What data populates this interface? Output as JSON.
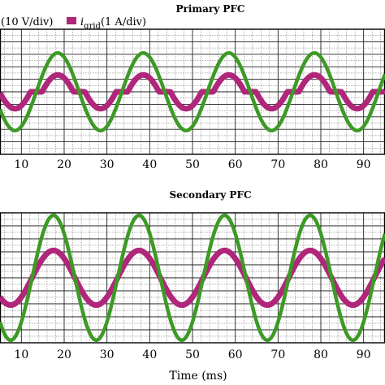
{
  "chart_data": [
    {
      "type": "line",
      "title": "Primary PFC",
      "xlabel": "",
      "ylabel": "",
      "x_range_ms": [
        5,
        95
      ],
      "x_ticks": [
        10,
        20,
        30,
        40,
        50,
        60,
        70,
        80,
        90
      ],
      "y_divisions": 10,
      "grid": true,
      "legend": {
        "placement": "top",
        "entries": [
          {
            "series": "vgrid",
            "label_visible": "(10 V/div)"
          },
          {
            "series": "igrid",
            "label_main": "i",
            "label_sub": "grid",
            "label_rest": "(1 A/div)"
          }
        ]
      },
      "series": [
        {
          "key": "vgrid",
          "color": "#3c9a25",
          "frequency_hz": 50,
          "peak_ms": 18.5,
          "amplitude_div": 3.1,
          "offset_div": 0
        },
        {
          "key": "igrid",
          "color": "#b0267a",
          "frequency_hz": 50,
          "peak_ms": 18.5,
          "amplitude_div": 1.35,
          "offset_div": 0,
          "dead_band_div": 0.95
        }
      ]
    },
    {
      "type": "line",
      "title": "Secondary PFC",
      "xlabel": "Time (ms)",
      "ylabel": "",
      "x_range_ms": [
        5,
        95
      ],
      "x_ticks": [
        10,
        20,
        30,
        40,
        50,
        60,
        70,
        80,
        90
      ],
      "y_divisions": 10,
      "grid": true,
      "series": [
        {
          "key": "vgrid",
          "color": "#3c9a25",
          "frequency_hz": 50,
          "peak_ms": 17.5,
          "amplitude_div": 4.8,
          "offset_div": 0
        },
        {
          "key": "igrid",
          "color": "#b0267a",
          "frequency_hz": 50,
          "peak_ms": 17.5,
          "amplitude_div": 2.1,
          "offset_div": 0,
          "dead_band_div": 0
        }
      ]
    }
  ],
  "colors": {
    "voltage": "#3c9a25",
    "current": "#b0267a",
    "grid": "#000000"
  }
}
